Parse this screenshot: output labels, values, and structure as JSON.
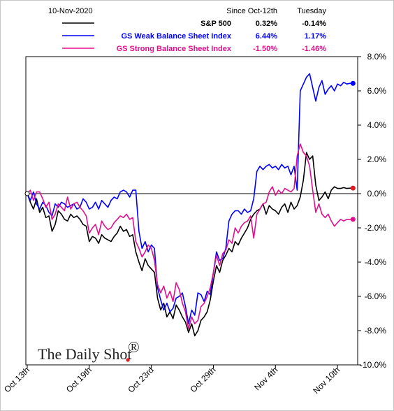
{
  "header": {
    "date": "10-Nov-2020",
    "col1": "Since Oct-12th",
    "col2": "Tuesday"
  },
  "watermark": {
    "text": "The Daily Shot",
    "reg": "®",
    "dot_color": "#e31b23"
  },
  "chart_data": {
    "type": "line",
    "ylim": [
      -10,
      8
    ],
    "yticks": [
      "8.0%",
      "6.0%",
      "4.0%",
      "2.0%",
      "0.0%",
      "-2.0%",
      "-4.0%",
      "-6.0%",
      "-8.0%",
      "-10.0%"
    ],
    "ytick_values": [
      8,
      6,
      4,
      2,
      0,
      -2,
      -4,
      -6,
      -8,
      -10
    ],
    "xticks": [
      "Oct 13th",
      "Oct 19th",
      "Oct 23rd",
      "Oct 29th",
      "Nov 4th",
      "Nov 10th"
    ],
    "xtick_positions": [
      0,
      4,
      8,
      12,
      16,
      20
    ],
    "x_end": 21.3,
    "grid": false,
    "legend_position": "top",
    "series": [
      {
        "name": "S&P 500",
        "color": "#000000",
        "since": "0.32%",
        "tuesday": "-0.14%",
        "end_marker": "#e31b23",
        "x": [
          0,
          0.2,
          0.4,
          0.6,
          0.8,
          1.0,
          1.2,
          1.4,
          1.6,
          1.8,
          2.0,
          2.2,
          2.4,
          2.6,
          2.8,
          3.0,
          3.2,
          3.4,
          3.6,
          3.8,
          4.0,
          4.2,
          4.4,
          4.6,
          4.8,
          5.0,
          5.2,
          5.4,
          5.6,
          5.8,
          6.0,
          6.2,
          6.4,
          6.6,
          6.8,
          7.0,
          7.2,
          7.4,
          7.6,
          7.8,
          8.0,
          8.2,
          8.4,
          8.6,
          8.8,
          9.0,
          9.2,
          9.4,
          9.6,
          9.8,
          10.0,
          10.2,
          10.4,
          10.6,
          10.8,
          11.0,
          11.2,
          11.4,
          11.6,
          11.8,
          12.0,
          12.2,
          12.4,
          12.6,
          12.8,
          13.0,
          13.2,
          13.4,
          13.6,
          13.8,
          14.0,
          14.2,
          14.4,
          14.6,
          14.8,
          15.0,
          15.2,
          15.4,
          15.6,
          15.8,
          16.0,
          16.2,
          16.4,
          16.6,
          16.8,
          17.0,
          17.2,
          17.4,
          17.6,
          17.8,
          18.0,
          18.2,
          18.4,
          18.6,
          18.8,
          19.0,
          19.2,
          19.4,
          19.6,
          19.8,
          20.0,
          20.2,
          20.4,
          20.6,
          20.8,
          21.0
        ],
        "y": [
          0,
          -0.5,
          -0.9,
          -0.3,
          -1.1,
          -0.8,
          -1.4,
          -1.3,
          -2.2,
          -1.8,
          -1.0,
          -1.2,
          -1.5,
          -1.6,
          -1.2,
          -1.4,
          -1.3,
          -1.5,
          -1.8,
          -1.9,
          -2.8,
          -2.5,
          -2.6,
          -2.9,
          -2.4,
          -2.6,
          -2.7,
          -2.8,
          -2.5,
          -2.3,
          -1.9,
          -2.2,
          -2.1,
          -2.5,
          -2.4,
          -3.4,
          -4.0,
          -4.5,
          -3.8,
          -4.2,
          -4.4,
          -4.6,
          -6.1,
          -6.8,
          -6.4,
          -7.2,
          -6.9,
          -7.3,
          -6.5,
          -6.8,
          -7.2,
          -7.5,
          -8.1,
          -7.6,
          -8.3,
          -8.0,
          -7.4,
          -7.2,
          -6.9,
          -6.2,
          -5.1,
          -4.2,
          -4.6,
          -3.9,
          -3.6,
          -3.2,
          -3.4,
          -2.8,
          -3.0,
          -2.6,
          -2.3,
          -2.0,
          -1.5,
          -1.2,
          -1.0,
          -0.9,
          -0.6,
          -1.2,
          -0.7,
          -0.9,
          -1.0,
          -1.2,
          -0.8,
          -0.6,
          -1.1,
          -0.5,
          -0.9,
          -0.7,
          -0.2,
          0.8,
          2.4,
          2.0,
          2.2,
          0.5,
          -0.4,
          -0.2,
          0.1,
          -0.3,
          0.2,
          0.4,
          0.3,
          0.3,
          0.35,
          0.3,
          0.32,
          0.32
        ]
      },
      {
        "name": "GS Weak Balance Sheet Index",
        "color": "#0000ff",
        "since": "6.44%",
        "tuesday": "1.17%",
        "end_marker": "#0000ff",
        "x": [
          0,
          0.2,
          0.4,
          0.6,
          0.8,
          1.0,
          1.2,
          1.4,
          1.6,
          1.8,
          2.0,
          2.2,
          2.4,
          2.6,
          2.8,
          3.0,
          3.2,
          3.4,
          3.6,
          3.8,
          4.0,
          4.2,
          4.4,
          4.6,
          4.8,
          5.0,
          5.2,
          5.4,
          5.6,
          5.8,
          6.0,
          6.2,
          6.4,
          6.6,
          6.8,
          7.0,
          7.2,
          7.4,
          7.6,
          7.8,
          8.0,
          8.2,
          8.4,
          8.6,
          8.8,
          9.0,
          9.2,
          9.4,
          9.6,
          9.8,
          10.0,
          10.2,
          10.4,
          10.6,
          10.8,
          11.0,
          11.2,
          11.4,
          11.6,
          11.8,
          12.0,
          12.2,
          12.4,
          12.6,
          12.8,
          13.0,
          13.2,
          13.4,
          13.6,
          13.8,
          14.0,
          14.2,
          14.4,
          14.6,
          14.8,
          15.0,
          15.2,
          15.4,
          15.6,
          15.8,
          16.0,
          16.2,
          16.4,
          16.6,
          16.8,
          17.0,
          17.2,
          17.4,
          17.6,
          17.8,
          18.0,
          18.2,
          18.4,
          18.6,
          18.8,
          19.0,
          19.2,
          19.4,
          19.6,
          19.8,
          20.0,
          20.2,
          20.4,
          20.6,
          20.8,
          21.0
        ],
        "y": [
          0,
          -0.4,
          0.1,
          -0.6,
          -0.9,
          -0.5,
          -0.7,
          -1.1,
          -1.3,
          -0.6,
          -0.8,
          -0.5,
          -0.6,
          -0.8,
          -0.7,
          -0.6,
          -0.9,
          -0.8,
          -0.3,
          -0.5,
          -0.9,
          -0.8,
          -0.5,
          -0.9,
          -0.4,
          -0.6,
          -0.8,
          -0.4,
          -0.2,
          -0.3,
          0.1,
          0.2,
          0.1,
          -0.2,
          0.2,
          0.2,
          -2.2,
          -3.2,
          -2.8,
          -3.4,
          -3.0,
          -3.2,
          -5.5,
          -6.2,
          -6.8,
          -6.4,
          -6.9,
          -6.7,
          -6.1,
          -6.0,
          -5.8,
          -6.6,
          -7.6,
          -6.8,
          -7.1,
          -5.8,
          -5.9,
          -6.3,
          -5.7,
          -5.9,
          -4.6,
          -3.4,
          -3.9,
          -3.8,
          -3.2,
          -1.6,
          -1.2,
          -1.0,
          -1.0,
          -1.2,
          -0.9,
          -1.1,
          -1.0,
          -0.3,
          1.3,
          1.6,
          1.4,
          1.6,
          1.7,
          1.5,
          1.6,
          1.4,
          1.7,
          1.5,
          1.6,
          1.1,
          1.6,
          0.2,
          6.0,
          6.4,
          6.8,
          7.0,
          6.2,
          5.4,
          6.2,
          6.6,
          5.8,
          6.1,
          6.3,
          6.0,
          6.4,
          6.3,
          6.5,
          6.4,
          6.44,
          6.44
        ]
      },
      {
        "name": "GS Strong Balance Sheet Index",
        "color": "#e0108c",
        "since": "-1.50%",
        "tuesday": "-1.46%",
        "end_marker": "#e0108c",
        "x": [
          0,
          0.2,
          0.4,
          0.6,
          0.8,
          1.0,
          1.2,
          1.4,
          1.6,
          1.8,
          2.0,
          2.2,
          2.4,
          2.6,
          2.8,
          3.0,
          3.2,
          3.4,
          3.6,
          3.8,
          4.0,
          4.2,
          4.4,
          4.6,
          4.8,
          5.0,
          5.2,
          5.4,
          5.6,
          5.8,
          6.0,
          6.2,
          6.4,
          6.6,
          6.8,
          7.0,
          7.2,
          7.4,
          7.6,
          7.8,
          8.0,
          8.2,
          8.4,
          8.6,
          8.8,
          9.0,
          9.2,
          9.4,
          9.6,
          9.8,
          10.0,
          10.2,
          10.4,
          10.6,
          10.8,
          11.0,
          11.2,
          11.4,
          11.6,
          11.8,
          12.0,
          12.2,
          12.4,
          12.6,
          12.8,
          13.0,
          13.2,
          13.4,
          13.6,
          13.8,
          14.0,
          14.2,
          14.4,
          14.6,
          14.8,
          15.0,
          15.2,
          15.4,
          15.6,
          15.8,
          16.0,
          16.2,
          16.4,
          16.6,
          16.8,
          17.0,
          17.2,
          17.4,
          17.6,
          17.8,
          18.0,
          18.2,
          18.4,
          18.6,
          18.8,
          19.0,
          19.2,
          19.4,
          19.6,
          19.8,
          20.0,
          20.2,
          20.4,
          20.6,
          20.8,
          21.0
        ],
        "y": [
          0,
          0.2,
          -0.4,
          0.1,
          0.1,
          -0.3,
          -0.8,
          -0.5,
          -1.5,
          -1.2,
          -0.6,
          -0.8,
          -1.0,
          -0.2,
          -0.9,
          -0.6,
          -0.5,
          -0.8,
          -1.0,
          -1.3,
          -2.3,
          -2.0,
          -1.8,
          -2.4,
          -1.6,
          -1.9,
          -2.1,
          -2.0,
          -1.7,
          -1.5,
          -1.3,
          -1.4,
          -1.2,
          -1.5,
          -1.4,
          -2.8,
          -3.2,
          -3.7,
          -3.4,
          -3.0,
          -3.2,
          -3.9,
          -5.3,
          -5.8,
          -5.4,
          -6.1,
          -5.7,
          -6.3,
          -5.2,
          -5.6,
          -6.4,
          -6.9,
          -7.9,
          -7.2,
          -7.6,
          -7.4,
          -6.6,
          -6.4,
          -6.0,
          -5.5,
          -4.6,
          -3.6,
          -4.2,
          -3.5,
          -3.3,
          -2.7,
          -2.9,
          -2.0,
          -2.3,
          -1.9,
          -1.7,
          -1.6,
          -1.3,
          -2.6,
          -1.2,
          -0.9,
          -0.6,
          -0.5,
          0.1,
          0.4,
          -0.1,
          0.2,
          0.0,
          0.3,
          0.2,
          0.1,
          0.3,
          2.2,
          2.9,
          2.4,
          2.2,
          1.6,
          0.2,
          -1.1,
          -0.6,
          -1.2,
          -1.4,
          -1.2,
          -1.6,
          -1.9,
          -1.7,
          -1.5,
          -1.6,
          -1.5,
          -1.5,
          -1.5
        ]
      }
    ]
  }
}
